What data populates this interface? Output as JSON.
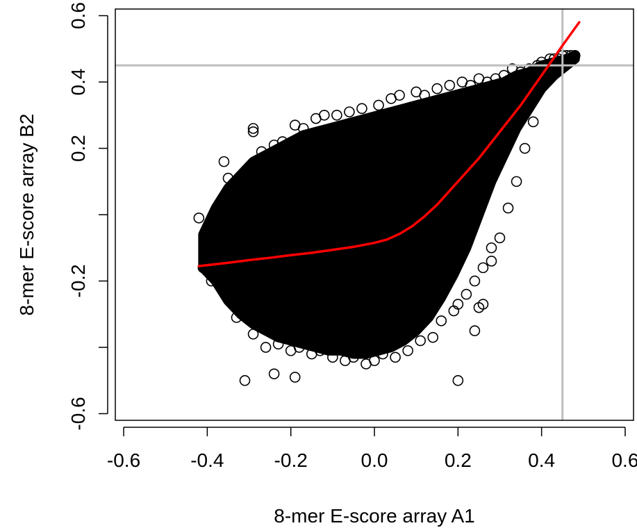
{
  "chart_data": {
    "type": "scatter",
    "title": "",
    "xlabel": "8-mer E-score array A1",
    "ylabel": "8-mer E-score array B2",
    "xlim": [
      -0.62,
      0.62
    ],
    "ylim": [
      -0.62,
      0.62
    ],
    "xticks": [
      -0.6,
      -0.4,
      -0.2,
      0.0,
      0.2,
      0.4,
      0.6
    ],
    "xtick_labels": [
      "-0.6",
      "-0.4",
      "-0.2",
      "0.0",
      "0.2",
      "0.4",
      "0.6"
    ],
    "yticks": [
      -0.6,
      -0.4,
      -0.2,
      0.0,
      0.2,
      0.4,
      0.6
    ],
    "ytick_labels": [
      "-0.6",
      "",
      "-0.2",
      "",
      "0.2",
      "0.4",
      "0.6"
    ],
    "grid": false,
    "marker": "open-circle",
    "marker_color": "#000000",
    "series": [
      {
        "kind": "points",
        "x": [
          -0.42,
          -0.41,
          -0.39,
          -0.37,
          -0.36,
          -0.35,
          -0.34,
          -0.34,
          -0.33,
          -0.32,
          -0.31,
          -0.3,
          -0.29,
          -0.29,
          -0.28,
          -0.27,
          -0.26,
          -0.25,
          -0.24,
          -0.23,
          -0.22,
          -0.2,
          -0.19,
          -0.18,
          -0.17,
          -0.15,
          -0.14,
          -0.13,
          -0.12,
          -0.1,
          -0.09,
          -0.07,
          -0.06,
          -0.05,
          -0.03,
          -0.02,
          0.0,
          0.01,
          0.02,
          0.04,
          0.05,
          0.06,
          0.08,
          0.1,
          0.11,
          0.12,
          0.14,
          0.15,
          0.16,
          0.18,
          0.19,
          0.2,
          0.21,
          0.22,
          0.23,
          0.24,
          0.25,
          0.26,
          0.27,
          0.28,
          0.29,
          0.3,
          0.31,
          0.32,
          0.33,
          0.34,
          0.35,
          0.36,
          0.37,
          0.38,
          0.39,
          0.4,
          0.41,
          0.42,
          0.43,
          0.44,
          0.45,
          0.46,
          0.47,
          0.48,
          -0.31,
          -0.24,
          -0.19,
          0.2,
          -0.29,
          0.24,
          0.26,
          0.25,
          0.28
        ],
        "y": [
          -0.01,
          -0.16,
          -0.2,
          -0.14,
          0.16,
          0.11,
          -0.24,
          0.03,
          -0.31,
          -0.1,
          -0.26,
          0.07,
          -0.36,
          0.25,
          -0.33,
          0.19,
          -0.4,
          -0.35,
          0.21,
          -0.39,
          0.22,
          -0.41,
          0.27,
          -0.4,
          0.26,
          -0.42,
          0.29,
          -0.41,
          0.3,
          -0.43,
          0.3,
          -0.44,
          0.31,
          -0.43,
          0.32,
          -0.45,
          -0.44,
          0.33,
          -0.42,
          0.35,
          -0.43,
          0.36,
          -0.41,
          0.37,
          -0.38,
          0.36,
          -0.37,
          0.38,
          -0.32,
          0.39,
          -0.29,
          -0.27,
          0.4,
          -0.24,
          0.39,
          -0.2,
          0.41,
          -0.16,
          0.4,
          -0.1,
          0.41,
          -0.07,
          0.42,
          0.02,
          0.44,
          0.1,
          0.43,
          0.2,
          0.44,
          0.28,
          0.45,
          0.46,
          0.45,
          0.47,
          0.47,
          0.47,
          0.48,
          0.48,
          0.48,
          0.48,
          -0.5,
          -0.48,
          -0.49,
          -0.5,
          0.26,
          -0.35,
          -0.27,
          -0.28,
          -0.14
        ]
      },
      {
        "kind": "cloud",
        "x": [
          -0.41,
          -0.38,
          -0.35,
          -0.32,
          -0.29,
          -0.26,
          -0.23,
          -0.2,
          -0.17,
          -0.14,
          -0.11,
          -0.08,
          -0.05,
          -0.02,
          0.01,
          0.04,
          0.07,
          0.1,
          0.13,
          0.16,
          0.19,
          0.22,
          0.25,
          0.28,
          0.31,
          0.34,
          0.37,
          0.4,
          0.43,
          0.46,
          0.48
        ],
        "y_upper": [
          -0.06,
          0.02,
          0.08,
          0.12,
          0.16,
          0.18,
          0.2,
          0.22,
          0.24,
          0.25,
          0.26,
          0.27,
          0.28,
          0.29,
          0.3,
          0.31,
          0.32,
          0.33,
          0.34,
          0.35,
          0.36,
          0.37,
          0.38,
          0.39,
          0.4,
          0.42,
          0.43,
          0.45,
          0.46,
          0.47,
          0.48
        ],
        "y_lower": [
          -0.16,
          -0.2,
          -0.26,
          -0.3,
          -0.33,
          -0.35,
          -0.37,
          -0.38,
          -0.39,
          -0.4,
          -0.41,
          -0.41,
          -0.42,
          -0.42,
          -0.41,
          -0.4,
          -0.38,
          -0.35,
          -0.31,
          -0.25,
          -0.18,
          -0.1,
          0.0,
          0.1,
          0.18,
          0.26,
          0.32,
          0.38,
          0.42,
          0.45,
          0.47
        ]
      },
      {
        "kind": "line",
        "color": "#ff0000",
        "x": [
          -0.42,
          -0.35,
          -0.3,
          -0.25,
          -0.2,
          -0.15,
          -0.1,
          -0.05,
          0.0,
          0.03,
          0.06,
          0.09,
          0.12,
          0.15,
          0.2,
          0.25,
          0.3,
          0.35,
          0.4,
          0.45,
          0.49
        ],
        "y": [
          -0.155,
          -0.145,
          -0.137,
          -0.13,
          -0.122,
          -0.115,
          -0.106,
          -0.097,
          -0.085,
          -0.075,
          -0.058,
          -0.035,
          -0.005,
          0.03,
          0.1,
          0.17,
          0.25,
          0.33,
          0.42,
          0.51,
          0.58
        ]
      }
    ],
    "reference_lines": [
      {
        "orientation": "vertical",
        "value": 0.45,
        "color": "#bebebe"
      },
      {
        "orientation": "horizontal",
        "value": 0.45,
        "color": "#bebebe"
      }
    ]
  }
}
